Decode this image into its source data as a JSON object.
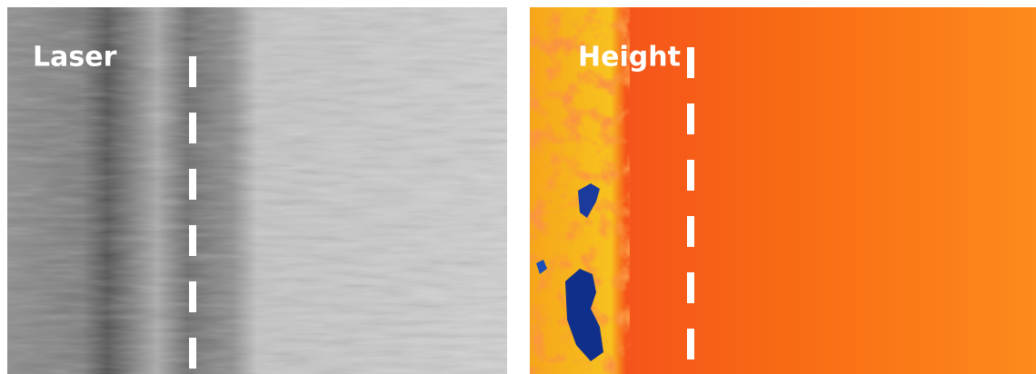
{
  "panels": [
    {
      "label": "Laser"
    },
    {
      "label": "Height"
    }
  ]
}
